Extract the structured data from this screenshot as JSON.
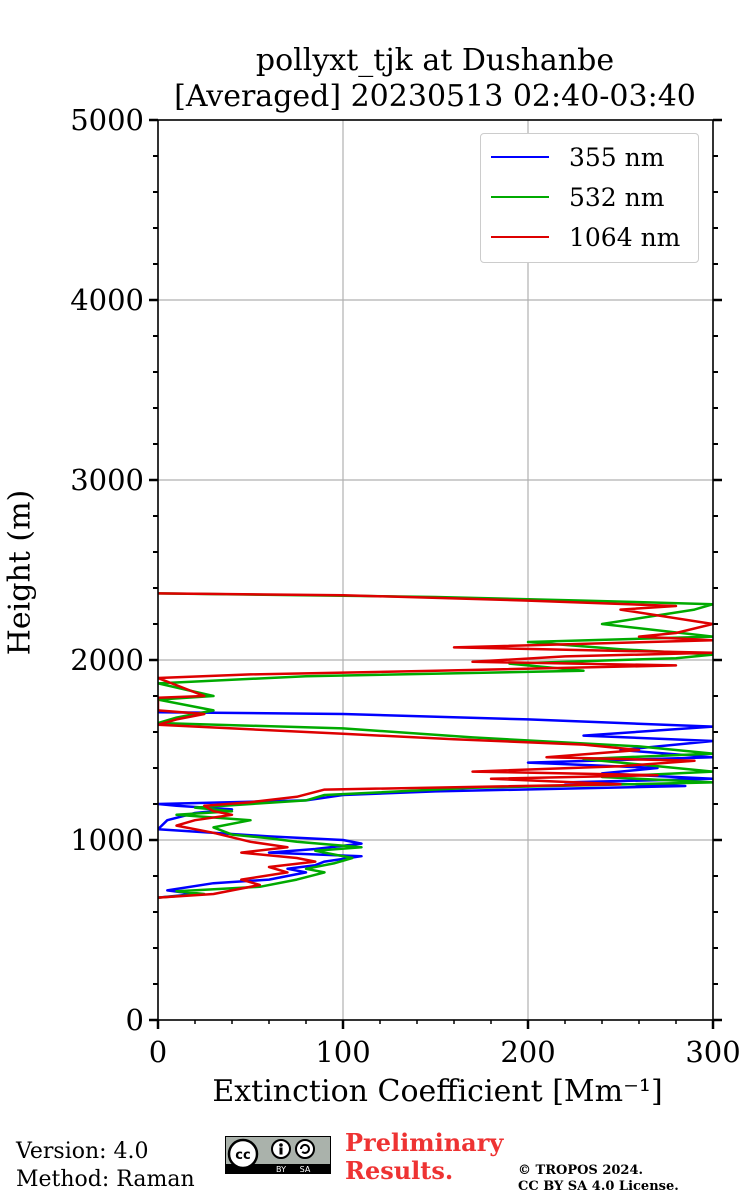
{
  "chart_data": {
    "type": "line",
    "title": "pollyxt_tjk at Dushanbe",
    "subtitle": "[Averaged] 20230513 02:40-03:40",
    "xlabel": "Extinction Coefficient [Mm⁻¹]",
    "ylabel": "Height (m)",
    "xlim": [
      0,
      300
    ],
    "ylim": [
      0,
      5000
    ],
    "x_ticks": [
      "0",
      "100",
      "200",
      "300"
    ],
    "y_ticks": [
      "0",
      "1000",
      "2000",
      "3000",
      "4000",
      "5000"
    ],
    "grid": true,
    "legend_position": "top-right",
    "series": [
      {
        "name": "355 nm",
        "color": "#0000ff",
        "points": [
          [
            0,
            680
          ],
          [
            20,
            700
          ],
          [
            5,
            720
          ],
          [
            30,
            760
          ],
          [
            60,
            780
          ],
          [
            80,
            820
          ],
          [
            70,
            840
          ],
          [
            85,
            860
          ],
          [
            90,
            880
          ],
          [
            110,
            910
          ],
          [
            60,
            930
          ],
          [
            85,
            950
          ],
          [
            110,
            980
          ],
          [
            100,
            1000
          ],
          [
            60,
            1020
          ],
          [
            0,
            1060
          ],
          [
            5,
            1110
          ],
          [
            20,
            1150
          ],
          [
            40,
            1170
          ],
          [
            10,
            1190
          ],
          [
            0,
            1200
          ],
          [
            80,
            1220
          ],
          [
            100,
            1250
          ],
          [
            150,
            1270
          ],
          [
            285,
            1300
          ],
          [
            220,
            1320
          ],
          [
            300,
            1340
          ],
          [
            240,
            1370
          ],
          [
            270,
            1400
          ],
          [
            200,
            1430
          ],
          [
            300,
            1460
          ],
          [
            250,
            1500
          ],
          [
            300,
            1550
          ],
          [
            230,
            1580
          ],
          [
            300,
            1630
          ],
          [
            250,
            1650
          ],
          [
            200,
            1670
          ],
          [
            100,
            1700
          ],
          [
            0,
            1710
          ]
        ]
      },
      {
        "name": "532 nm",
        "color": "#00aa00",
        "points": [
          [
            0,
            680
          ],
          [
            25,
            700
          ],
          [
            10,
            715
          ],
          [
            55,
            740
          ],
          [
            75,
            780
          ],
          [
            90,
            820
          ],
          [
            80,
            840
          ],
          [
            95,
            870
          ],
          [
            105,
            900
          ],
          [
            85,
            940
          ],
          [
            110,
            960
          ],
          [
            75,
            990
          ],
          [
            60,
            1010
          ],
          [
            40,
            1030
          ],
          [
            30,
            1070
          ],
          [
            50,
            1110
          ],
          [
            10,
            1140
          ],
          [
            40,
            1160
          ],
          [
            20,
            1180
          ],
          [
            80,
            1220
          ],
          [
            90,
            1250
          ],
          [
            170,
            1290
          ],
          [
            300,
            1320
          ],
          [
            240,
            1350
          ],
          [
            300,
            1380
          ],
          [
            260,
            1420
          ],
          [
            230,
            1450
          ],
          [
            300,
            1480
          ],
          [
            260,
            1520
          ],
          [
            170,
            1570
          ],
          [
            100,
            1620
          ],
          [
            0,
            1650
          ],
          [
            10,
            1680
          ],
          [
            30,
            1720
          ],
          [
            0,
            1780
          ],
          [
            30,
            1800
          ],
          [
            0,
            1870
          ],
          [
            40,
            1890
          ],
          [
            80,
            1910
          ],
          [
            230,
            1940
          ],
          [
            190,
            1980
          ],
          [
            280,
            2010
          ],
          [
            300,
            2030
          ],
          [
            250,
            2060
          ],
          [
            200,
            2100
          ],
          [
            300,
            2130
          ],
          [
            240,
            2200
          ],
          [
            290,
            2280
          ],
          [
            300,
            2310
          ],
          [
            230,
            2330
          ],
          [
            150,
            2350
          ],
          [
            0,
            2370
          ]
        ]
      },
      {
        "name": "1064 nm",
        "color": "#dd0000",
        "points": [
          [
            0,
            680
          ],
          [
            30,
            700
          ],
          [
            40,
            720
          ],
          [
            55,
            750
          ],
          [
            45,
            780
          ],
          [
            70,
            820
          ],
          [
            60,
            850
          ],
          [
            85,
            880
          ],
          [
            75,
            900
          ],
          [
            45,
            930
          ],
          [
            70,
            960
          ],
          [
            50,
            990
          ],
          [
            30,
            1040
          ],
          [
            10,
            1080
          ],
          [
            20,
            1110
          ],
          [
            40,
            1140
          ],
          [
            30,
            1160
          ],
          [
            25,
            1190
          ],
          [
            50,
            1210
          ],
          [
            75,
            1240
          ],
          [
            90,
            1280
          ],
          [
            250,
            1310
          ],
          [
            180,
            1340
          ],
          [
            270,
            1360
          ],
          [
            170,
            1380
          ],
          [
            250,
            1410
          ],
          [
            290,
            1440
          ],
          [
            210,
            1460
          ],
          [
            260,
            1500
          ],
          [
            230,
            1530
          ],
          [
            160,
            1560
          ],
          [
            100,
            1590
          ],
          [
            40,
            1620
          ],
          [
            0,
            1640
          ],
          [
            10,
            1670
          ],
          [
            25,
            1700
          ],
          [
            0,
            1720
          ],
          [
            0,
            1790
          ],
          [
            25,
            1800
          ],
          [
            0,
            1900
          ],
          [
            50,
            1920
          ],
          [
            150,
            1940
          ],
          [
            280,
            1970
          ],
          [
            170,
            1990
          ],
          [
            220,
            2020
          ],
          [
            300,
            2040
          ],
          [
            160,
            2070
          ],
          [
            300,
            2110
          ],
          [
            260,
            2130
          ],
          [
            280,
            2150
          ],
          [
            300,
            2200
          ],
          [
            250,
            2280
          ],
          [
            280,
            2300
          ],
          [
            200,
            2330
          ],
          [
            100,
            2360
          ],
          [
            0,
            2370
          ]
        ]
      }
    ]
  },
  "footer": {
    "version": "Version: 4.0",
    "method": "Method: Raman",
    "preliminary_line1": "Preliminary",
    "preliminary_line2": "Results.",
    "copyright_line1": "© TROPOS 2024.",
    "copyright_line2": "CC BY SA 4.0 License.",
    "badge_by": "BY",
    "badge_sa": "SA"
  }
}
